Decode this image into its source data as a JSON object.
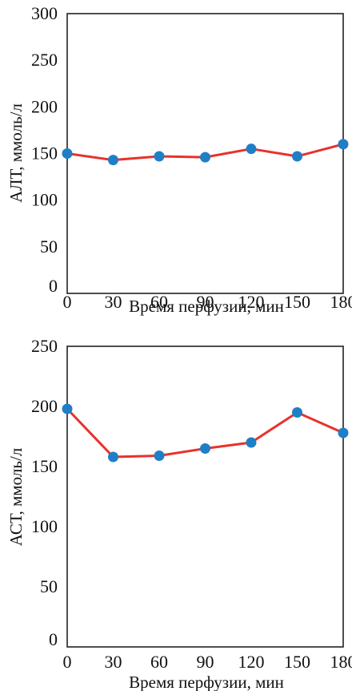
{
  "chart_data": [
    {
      "type": "line",
      "xlabel": "Время перфузии, мин",
      "ylabel": "АЛТ, ммоль/л",
      "x": [
        0,
        30,
        60,
        90,
        120,
        150,
        180
      ],
      "xlim": [
        0,
        180
      ],
      "ylim": [
        0,
        300
      ],
      "xticks": [
        "0",
        "30",
        "60",
        "90",
        "120",
        "150",
        "180"
      ],
      "yticks": [
        "0",
        "50",
        "100",
        "150",
        "200",
        "250",
        "300"
      ],
      "series": [
        {
          "values": [
            150,
            143,
            147,
            146,
            155,
            147,
            160
          ]
        }
      ],
      "grid": false,
      "line_color": "#e8322b",
      "marker_color": "#1f7fc6"
    },
    {
      "type": "line",
      "xlabel": "Время перфузии, мин",
      "ylabel": "АСТ, ммоль/л",
      "x": [
        0,
        30,
        60,
        90,
        120,
        150,
        180
      ],
      "xlim": [
        0,
        180
      ],
      "ylim": [
        0,
        250
      ],
      "xticks": [
        "0",
        "30",
        "60",
        "90",
        "120",
        "150",
        "180"
      ],
      "yticks": [
        "0",
        "50",
        "100",
        "150",
        "200",
        "250"
      ],
      "series": [
        {
          "values": [
            198,
            158,
            159,
            165,
            170,
            195,
            178
          ]
        }
      ],
      "grid": false,
      "line_color": "#e8322b",
      "marker_color": "#1f7fc6"
    }
  ]
}
